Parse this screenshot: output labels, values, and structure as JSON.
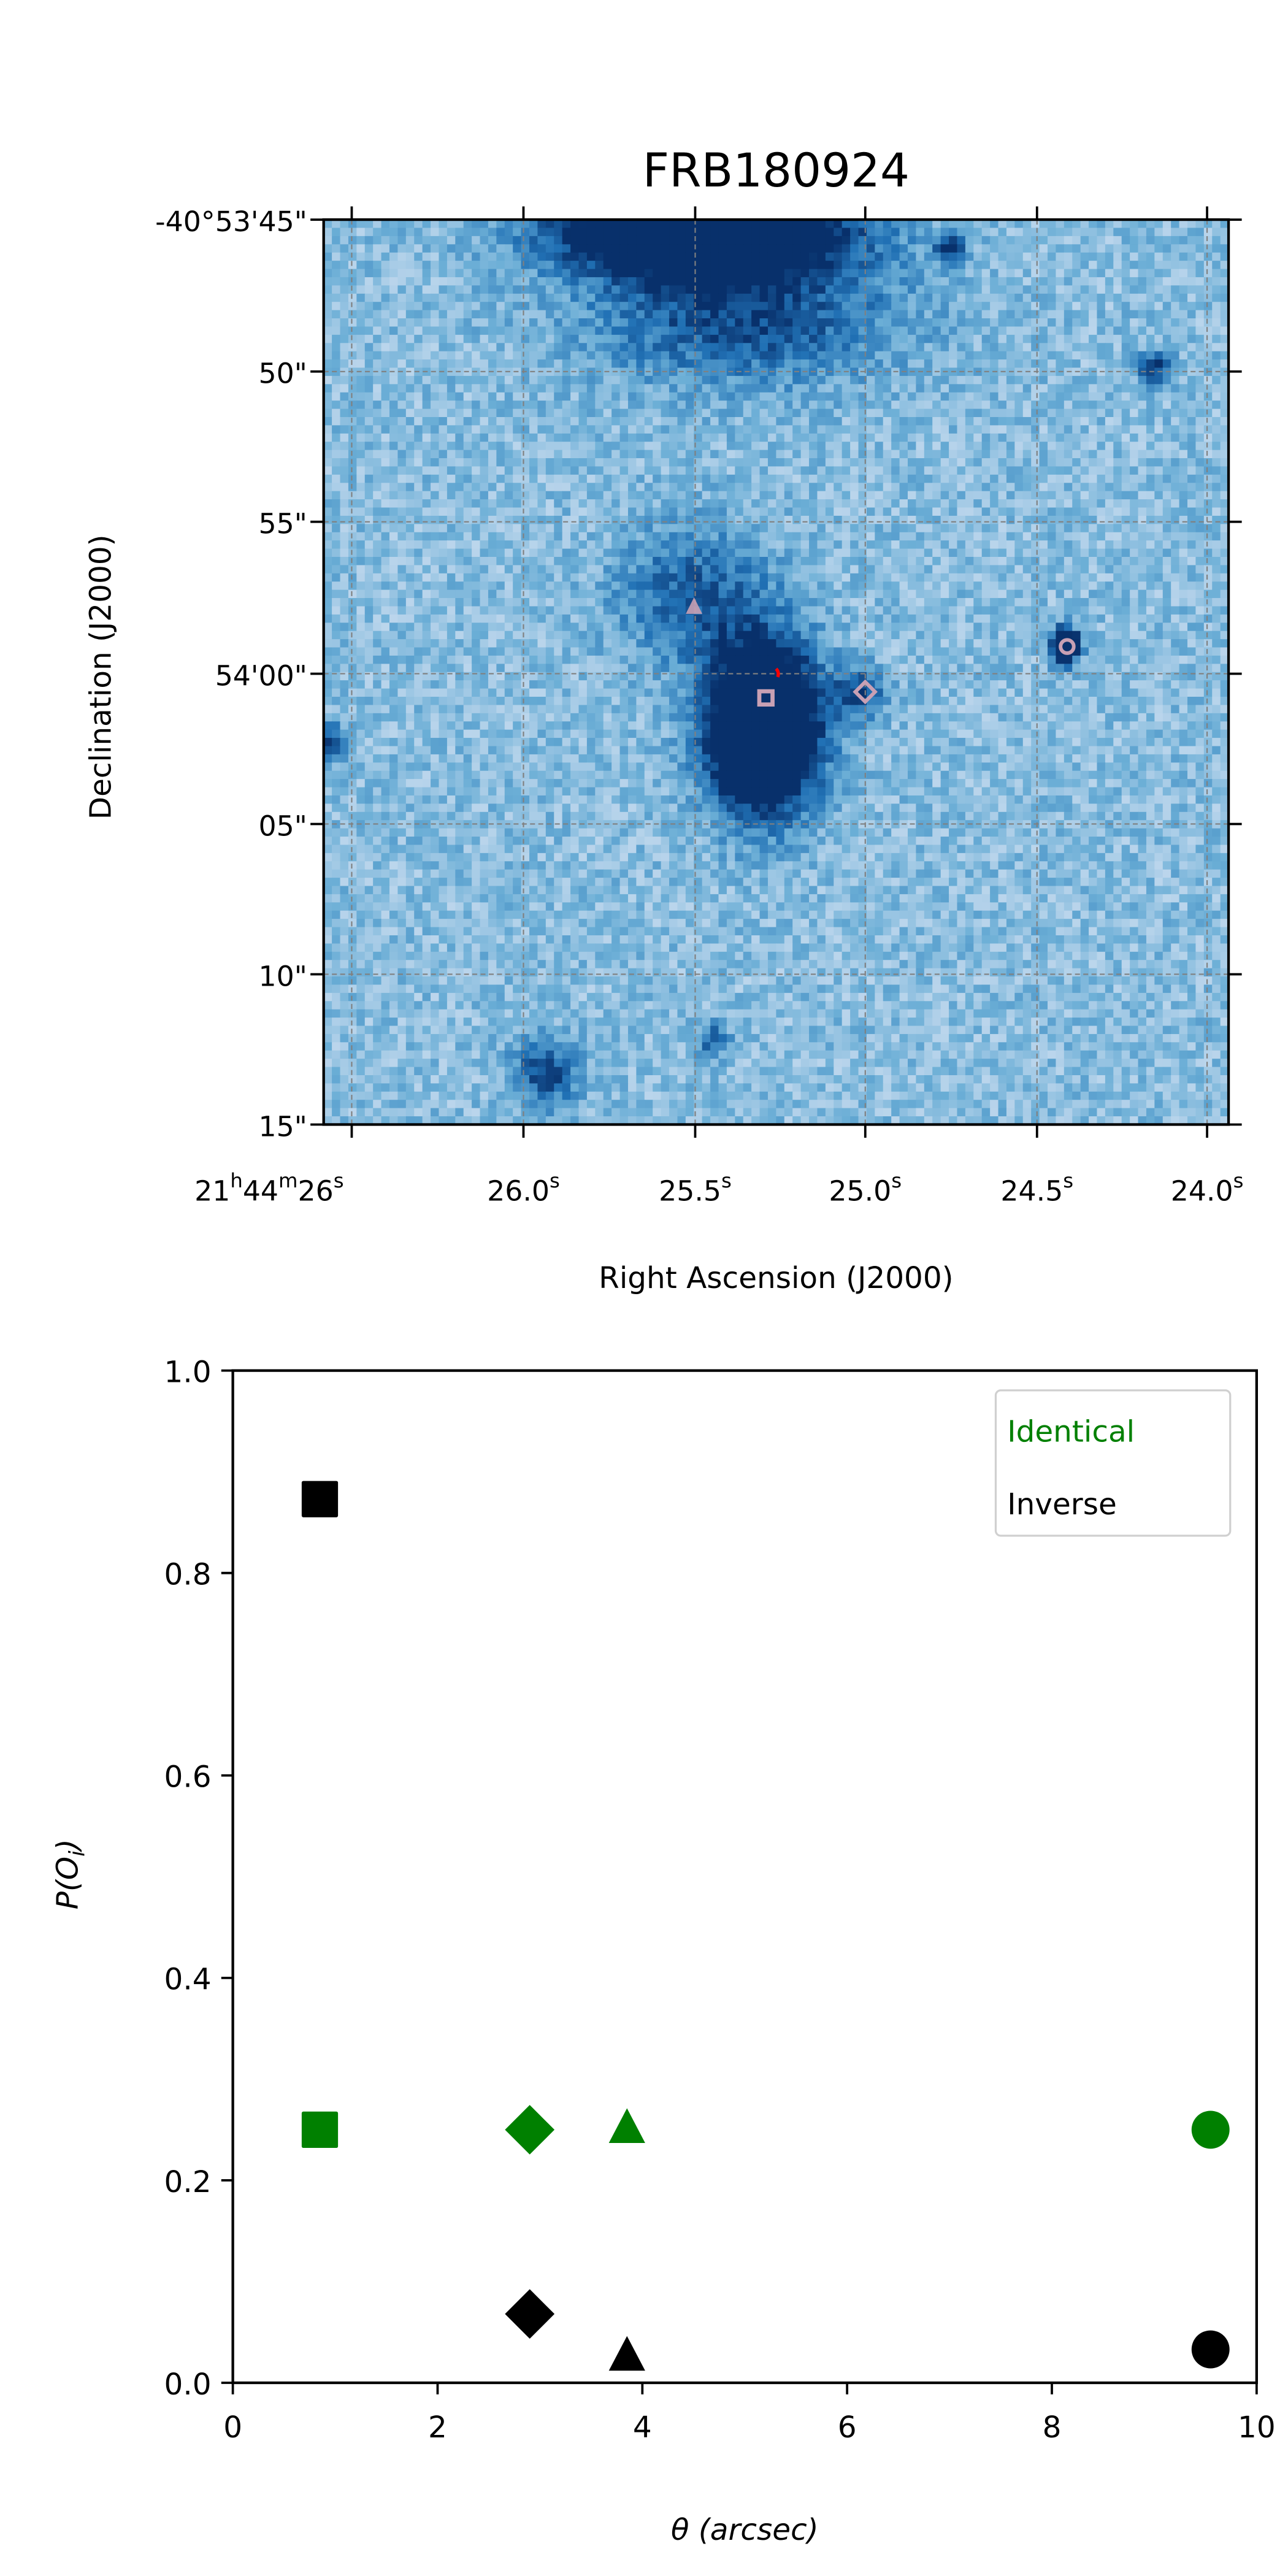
{
  "chart_data": [
    {
      "type": "heatmap",
      "title": "FRB180924",
      "xlabel": "Right Ascension (J2000)",
      "ylabel": "Declination (J2000)",
      "colormap": "Blues",
      "x_ticks": [
        [
          {
            "t": "21"
          },
          {
            "t": "h",
            "sup": true
          },
          {
            "t": "44"
          },
          {
            "t": "m",
            "sup": true
          },
          {
            "t": "26"
          },
          {
            "t": "s",
            "sup": true
          }
        ],
        [
          {
            "t": "26.0"
          },
          {
            "t": "s",
            "sup": true
          }
        ],
        [
          {
            "t": "25.5"
          },
          {
            "t": "s",
            "sup": true
          }
        ],
        [
          {
            "t": "25.0"
          },
          {
            "t": "s",
            "sup": true
          }
        ],
        [
          {
            "t": "24.5"
          },
          {
            "t": "s",
            "sup": true
          }
        ],
        [
          {
            "t": "24.0"
          },
          {
            "t": "s",
            "sup": true
          }
        ]
      ],
      "y_ticks": [
        "-40°53'45\"",
        "50\"",
        "55\"",
        "54'00\"",
        "05\"",
        "10\"",
        "15\""
      ],
      "grid": true,
      "grid_color": "#808080",
      "candidate_markers": [
        {
          "shape": "triangle",
          "ra_s": 25.5,
          "dec_offset_arcsec": -2.2
        },
        {
          "shape": "square",
          "ra_s": 25.29,
          "dec_offset_arcsec": 0.8
        },
        {
          "shape": "diamond",
          "ra_s": 25.0,
          "dec_offset_arcsec": 0.6
        },
        {
          "shape": "circle",
          "ra_s": 24.41,
          "dec_offset_arcsec": -0.9
        }
      ],
      "marker_color": "#c8a0b4",
      "frb_color": "#ff0000"
    },
    {
      "type": "scatter",
      "xlabel": "θ (arcsec)",
      "ylabel": "P(O_i)",
      "xlim": [
        0,
        10
      ],
      "ylim": [
        0,
        1.0
      ],
      "x_ticks": [
        "0",
        "2",
        "4",
        "6",
        "8",
        "10"
      ],
      "y_ticks": [
        "0.0",
        "0.2",
        "0.4",
        "0.6",
        "0.8",
        "1.0"
      ],
      "legend_position": "top-right",
      "series": [
        {
          "name": "Identical",
          "color": "#008000",
          "points": [
            {
              "x": 0.85,
              "y": 0.25,
              "shape": "square"
            },
            {
              "x": 2.9,
              "y": 0.25,
              "shape": "diamond"
            },
            {
              "x": 3.85,
              "y": 0.25,
              "shape": "triangle"
            },
            {
              "x": 9.55,
              "y": 0.25,
              "shape": "circle"
            }
          ]
        },
        {
          "name": "Inverse",
          "color": "#000000",
          "points": [
            {
              "x": 0.85,
              "y": 0.873,
              "shape": "square"
            },
            {
              "x": 2.9,
              "y": 0.068,
              "shape": "diamond"
            },
            {
              "x": 3.85,
              "y": 0.025,
              "shape": "triangle"
            },
            {
              "x": 9.55,
              "y": 0.033,
              "shape": "circle"
            }
          ]
        }
      ]
    }
  ]
}
